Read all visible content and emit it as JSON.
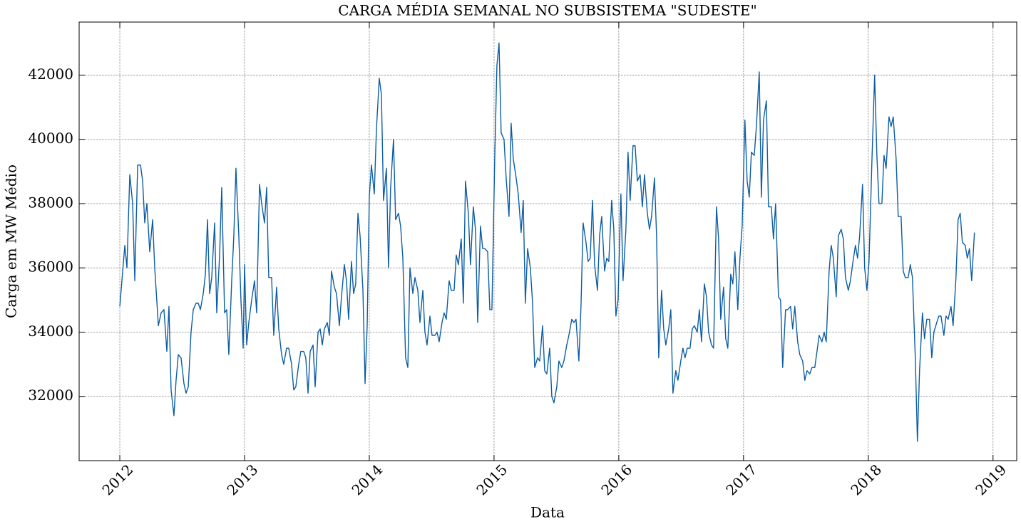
{
  "chart_data": {
    "type": "line",
    "title": "CARGA MÉDIA SEMANAL NO SUBSISTEMA \"SUDESTE\"",
    "x_label": "Data",
    "y_label": "Carga em MW Médio",
    "color": "#0C5DA5",
    "grid": true,
    "xlim": [
      2011.674,
      2019.19
    ],
    "xticks": [
      2012,
      2013,
      2014,
      2015,
      2016,
      2017,
      2018,
      2019
    ],
    "ylim": [
      30000,
      43650
    ],
    "yticks": [
      32000,
      34000,
      36000,
      38000,
      40000,
      42000
    ],
    "x": [
      2012.0,
      2012.04,
      2012.057,
      2012.08,
      2012.103,
      2012.12,
      2012.143,
      2012.166,
      2012.183,
      2012.2,
      2012.217,
      2012.24,
      2012.263,
      2012.28,
      2012.309,
      2012.331,
      2012.354,
      2012.377,
      2012.394,
      2012.411,
      2012.434,
      2012.451,
      2012.469,
      2012.491,
      2012.514,
      2012.531,
      2012.549,
      2012.571,
      2012.589,
      2012.611,
      2012.629,
      2012.646,
      2012.669,
      2012.686,
      2012.703,
      2012.72,
      2012.737,
      2012.76,
      2012.777,
      2012.8,
      2012.817,
      2012.84,
      2012.857,
      2012.874,
      2012.897,
      2012.914,
      2012.931,
      2012.954,
      2012.971,
      2012.989,
      2013.0,
      2013.017,
      2013.034,
      2013.057,
      2013.08,
      2013.097,
      2013.12,
      2013.137,
      2013.16,
      2013.177,
      2013.194,
      2013.217,
      2013.234,
      2013.257,
      2013.274,
      2013.297,
      2013.314,
      2013.337,
      2013.354,
      2013.377,
      2013.394,
      2013.411,
      2013.434,
      2013.451,
      2013.474,
      2013.491,
      2013.509,
      2013.526,
      2013.549,
      2013.566,
      2013.589,
      2013.606,
      2013.623,
      2013.64,
      2013.663,
      2013.68,
      2013.697,
      2013.72,
      2013.737,
      2013.76,
      2013.777,
      2013.8,
      2013.817,
      2013.834,
      2013.857,
      2013.874,
      2013.891,
      2013.909,
      2013.926,
      2013.949,
      2013.966,
      2013.983,
      2014.0,
      2014.017,
      2014.04,
      2014.057,
      2014.08,
      2014.097,
      2014.114,
      2014.137,
      2014.154,
      2014.171,
      2014.194,
      2014.211,
      2014.234,
      2014.251,
      2014.269,
      2014.291,
      2014.309,
      2014.326,
      2014.349,
      2014.366,
      2014.389,
      2014.406,
      2014.429,
      2014.446,
      2014.463,
      2014.486,
      2014.503,
      2014.526,
      2014.543,
      2014.56,
      2014.583,
      2014.6,
      2014.617,
      2014.64,
      2014.657,
      2014.68,
      2014.697,
      2014.714,
      2014.737,
      2014.754,
      2014.771,
      2014.794,
      2014.811,
      2014.834,
      2014.851,
      2014.869,
      2014.891,
      2014.909,
      2014.926,
      2014.949,
      2014.966,
      2014.983,
      2015.006,
      2015.023,
      2015.04,
      2015.057,
      2015.08,
      2015.097,
      2015.12,
      2015.137,
      2015.154,
      2015.177,
      2015.194,
      2015.217,
      2015.234,
      2015.251,
      2015.269,
      2015.291,
      2015.309,
      2015.326,
      2015.349,
      2015.366,
      2015.389,
      2015.406,
      2015.423,
      2015.446,
      2015.463,
      2015.48,
      2015.503,
      2015.52,
      2015.543,
      2015.56,
      2015.583,
      2015.6,
      2015.623,
      2015.64,
      2015.657,
      2015.68,
      2015.697,
      2015.714,
      2015.737,
      2015.754,
      2015.771,
      2015.789,
      2015.806,
      2015.829,
      2015.846,
      2015.863,
      2015.886,
      2015.903,
      2015.92,
      2015.943,
      2015.96,
      2015.977,
      2015.994,
      2016.017,
      2016.034,
      2016.057,
      2016.074,
      2016.091,
      2016.114,
      2016.131,
      2016.149,
      2016.171,
      2016.189,
      2016.206,
      2016.229,
      2016.246,
      2016.263,
      2016.286,
      2016.303,
      2016.32,
      2016.343,
      2016.36,
      2016.377,
      2016.4,
      2016.417,
      2016.434,
      2016.457,
      2016.474,
      2016.497,
      2016.514,
      2016.531,
      2016.549,
      2016.571,
      2016.589,
      2016.606,
      2016.629,
      2016.646,
      2016.663,
      2016.686,
      2016.703,
      2016.72,
      2016.743,
      2016.76,
      2016.783,
      2016.8,
      2016.817,
      2016.84,
      2016.857,
      2016.874,
      2016.897,
      2016.914,
      2016.931,
      2016.954,
      2016.971,
      2016.989,
      2017.011,
      2017.029,
      2017.046,
      2017.063,
      2017.086,
      2017.103,
      2017.126,
      2017.143,
      2017.16,
      2017.183,
      2017.2,
      2017.223,
      2017.24,
      2017.257,
      2017.28,
      2017.297,
      2017.314,
      2017.337,
      2017.354,
      2017.377,
      2017.394,
      2017.411,
      2017.434,
      2017.451,
      2017.474,
      2017.491,
      2017.509,
      2017.531,
      2017.549,
      2017.571,
      2017.589,
      2017.606,
      2017.629,
      2017.646,
      2017.663,
      2017.686,
      2017.703,
      2017.72,
      2017.743,
      2017.76,
      2017.783,
      2017.8,
      2017.817,
      2017.84,
      2017.857,
      2017.874,
      2017.897,
      2017.914,
      2017.931,
      2017.954,
      2017.971,
      2017.989,
      2018.006,
      2018.029,
      2018.051,
      2018.069,
      2018.086,
      2018.109,
      2018.126,
      2018.143,
      2018.166,
      2018.183,
      2018.2,
      2018.223,
      2018.24,
      2018.263,
      2018.28,
      2018.297,
      2018.32,
      2018.337,
      2018.354,
      2018.377,
      2018.394,
      2018.411,
      2018.434,
      2018.451,
      2018.469,
      2018.491,
      2018.509,
      2018.526,
      2018.549,
      2018.566,
      2018.583,
      2018.606,
      2018.623,
      2018.64,
      2018.663,
      2018.68,
      2018.703,
      2018.72,
      2018.737,
      2018.754,
      2018.777,
      2018.794,
      2018.811,
      2018.829,
      2018.851
    ],
    "values": [
      34800,
      36700,
      36000,
      38900,
      38000,
      35600,
      39200,
      39200,
      38700,
      37400,
      38000,
      36500,
      37500,
      36000,
      34200,
      34600,
      34700,
      33400,
      34800,
      32200,
      31400,
      32500,
      33300,
      33200,
      32400,
      32100,
      32300,
      34000,
      34700,
      34900,
      34900,
      34700,
      35200,
      35800,
      37500,
      35200,
      35700,
      37400,
      34600,
      36400,
      38500,
      34600,
      34700,
      33300,
      35600,
      37000,
      39100,
      37000,
      35000,
      33500,
      36100,
      33600,
      34300,
      35000,
      35600,
      34600,
      38600,
      38000,
      37400,
      38500,
      35700,
      35700,
      33900,
      35400,
      34100,
      33300,
      33000,
      33500,
      33500,
      33000,
      32200,
      32300,
      33000,
      33400,
      33400,
      33200,
      32100,
      33400,
      33600,
      32300,
      34000,
      34100,
      33600,
      34100,
      34300,
      33900,
      35900,
      35400,
      35200,
      34200,
      35100,
      36100,
      35600,
      34400,
      36200,
      35200,
      35500,
      37700,
      37000,
      35300,
      32400,
      34200,
      38200,
      39200,
      38300,
      40300,
      41900,
      41400,
      38100,
      39100,
      36000,
      38500,
      40000,
      37500,
      37700,
      37300,
      36300,
      33200,
      32900,
      36000,
      35200,
      35700,
      35300,
      34300,
      35300,
      34000,
      33600,
      34500,
      33900,
      33900,
      34000,
      33700,
      34300,
      34600,
      34400,
      35600,
      35300,
      35300,
      36400,
      36100,
      36900,
      34900,
      38700,
      37700,
      36100,
      37900,
      37200,
      34300,
      37300,
      36600,
      36600,
      36500,
      34700,
      34700,
      39500,
      42300,
      43000,
      40200,
      40000,
      38800,
      37600,
      40500,
      39400,
      38800,
      38300,
      37100,
      38100,
      34900,
      36600,
      36000,
      34900,
      32900,
      33200,
      33100,
      34200,
      32800,
      32700,
      33500,
      32000,
      31800,
      32300,
      33100,
      32900,
      33100,
      33600,
      33900,
      34400,
      34300,
      34400,
      33100,
      34800,
      37400,
      36800,
      36200,
      36300,
      38100,
      36100,
      35300,
      37000,
      37600,
      35900,
      36300,
      36200,
      38100,
      37200,
      34500,
      35000,
      38300,
      35600,
      37200,
      39600,
      38100,
      39800,
      39800,
      38700,
      38900,
      37900,
      38900,
      37700,
      37200,
      37600,
      38800,
      37000,
      33200,
      35300,
      34100,
      33600,
      34100,
      34700,
      32100,
      32800,
      32500,
      33100,
      33500,
      33200,
      33500,
      33500,
      34100,
      34200,
      34000,
      34700,
      33700,
      35500,
      35100,
      34000,
      33600,
      33500,
      37900,
      36900,
      34400,
      35400,
      33800,
      33500,
      35800,
      35500,
      36500,
      34700,
      36300,
      37300,
      40600,
      38700,
      38200,
      39600,
      39500,
      40400,
      42100,
      38200,
      40600,
      41200,
      37900,
      37900,
      36900,
      38000,
      35100,
      35000,
      32900,
      34700,
      34700,
      34800,
      34100,
      34800,
      33700,
      33300,
      33100,
      32500,
      32800,
      32700,
      32900,
      32900,
      33400,
      33900,
      33700,
      34000,
      33700,
      35900,
      36700,
      36300,
      35100,
      37000,
      37200,
      36900,
      35700,
      35300,
      35600,
      36100,
      36700,
      36300,
      37000,
      38600,
      36000,
      35300,
      36200,
      39300,
      42000,
      39500,
      38000,
      38000,
      39500,
      39100,
      40700,
      40400,
      40700,
      39400,
      37600,
      37600,
      35900,
      35700,
      35700,
      36100,
      35700,
      33200,
      30600,
      32800,
      34600,
      33800,
      34400,
      34400,
      33200,
      34000,
      34300,
      34500,
      34500,
      33900,
      34500,
      34400,
      34800,
      34200,
      35700,
      37500,
      37700,
      36800,
      36700,
      36300,
      36600,
      35600,
      37100
    ]
  }
}
